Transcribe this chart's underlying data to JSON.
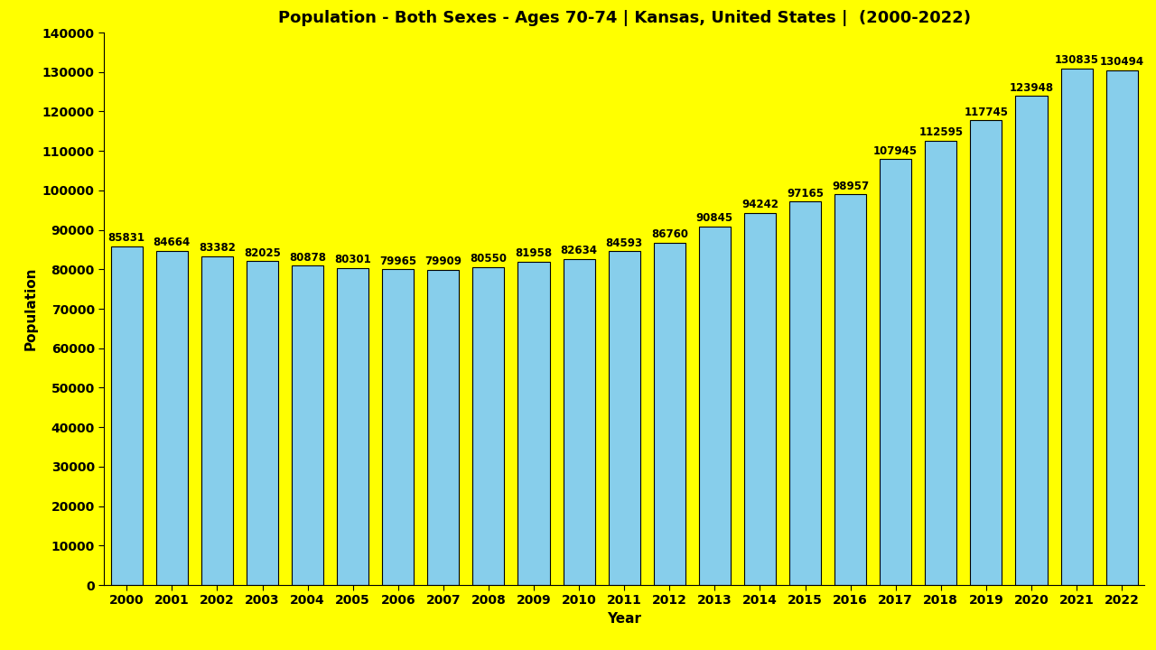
{
  "title": "Population - Both Sexes - Ages 70-74 | Kansas, United States |  (2000-2022)",
  "xlabel": "Year",
  "ylabel": "Population",
  "background_color": "#FFFF00",
  "bar_color": "#87CEEB",
  "bar_edge_color": "#000000",
  "years": [
    2000,
    2001,
    2002,
    2003,
    2004,
    2005,
    2006,
    2007,
    2008,
    2009,
    2010,
    2011,
    2012,
    2013,
    2014,
    2015,
    2016,
    2017,
    2018,
    2019,
    2020,
    2021,
    2022
  ],
  "values": [
    85831,
    84664,
    83382,
    82025,
    80878,
    80301,
    79965,
    79909,
    80550,
    81958,
    82634,
    84593,
    86760,
    90845,
    94242,
    97165,
    98957,
    107945,
    112595,
    117745,
    123948,
    130835,
    130494
  ],
  "ylim": [
    0,
    140000
  ],
  "yticks": [
    0,
    10000,
    20000,
    30000,
    40000,
    50000,
    60000,
    70000,
    80000,
    90000,
    100000,
    110000,
    120000,
    130000,
    140000
  ],
  "title_fontsize": 13,
  "axis_label_fontsize": 11,
  "tick_fontsize": 10,
  "annotation_fontsize": 8.5
}
